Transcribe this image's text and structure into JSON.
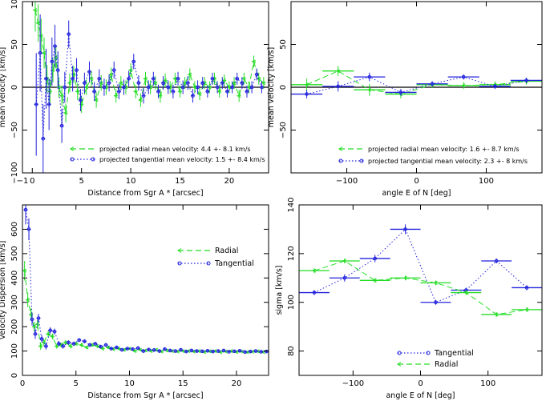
{
  "colors": {
    "radial": "#22dd22",
    "tangential": "#2222dd",
    "axis": "#000000"
  },
  "chart_data": [
    {
      "id": "p1",
      "type": "scatter",
      "xlabel": "Distance from Sgr A * [arcsec]",
      "ylabel": "mean velocity [km/s]",
      "xlim": [
        -1,
        24
      ],
      "ylim": [
        -100,
        100
      ],
      "xticks": [
        -1,
        0,
        5,
        10,
        15,
        20
      ],
      "xticklabels": [
        "−1",
        "0",
        "5",
        "10",
        "15",
        "20"
      ],
      "yticks": [
        -100,
        -50,
        0,
        50,
        100
      ],
      "yticklabels": [
        "−100",
        "−50",
        "0",
        "50",
        "100"
      ],
      "zero_line": true,
      "legend": [
        {
          "label": "projected radial mean velocity: 4.4 +- 8.1 km/s",
          "series": "radial"
        },
        {
          "label": "projected tangential mean velocity: 1.5 +- 8.4 km/s",
          "series": "tangential"
        }
      ],
      "series": [
        {
          "key": "radial",
          "name": "projected radial mean velocity",
          "style": "dashed",
          "x": [
            0.3,
            0.6,
            0.9,
            1.2,
            1.5,
            1.8,
            2.1,
            2.4,
            2.7,
            3.0,
            3.4,
            3.8,
            4.2,
            4.6,
            5.0,
            5.5,
            6.0,
            6.5,
            7.0,
            7.5,
            8.0,
            8.5,
            9.0,
            9.5,
            10.0,
            10.5,
            11.0,
            11.5,
            12.0,
            12.5,
            13.0,
            13.5,
            14.0,
            14.5,
            15.0,
            15.5,
            16.0,
            16.5,
            17.0,
            17.5,
            18.0,
            18.5,
            19.0,
            19.5,
            20.0,
            20.5,
            21.0,
            21.5,
            22.0,
            22.5,
            23.0,
            23.5
          ],
          "y": [
            90,
            75,
            60,
            40,
            10,
            -5,
            20,
            35,
            0,
            -10,
            -30,
            5,
            15,
            -5,
            -20,
            0,
            10,
            -15,
            5,
            0,
            15,
            -10,
            5,
            0,
            20,
            -5,
            -15,
            10,
            0,
            5,
            -10,
            8,
            0,
            10,
            -5,
            5,
            15,
            0,
            -8,
            5,
            0,
            10,
            -5,
            8,
            0,
            5,
            -10,
            10,
            0,
            30,
            10,
            5
          ],
          "err": [
            25,
            22,
            20,
            18,
            16,
            15,
            14,
            13,
            12,
            12,
            11,
            11,
            10,
            10,
            10,
            9,
            9,
            9,
            9,
            9,
            8,
            8,
            8,
            8,
            8,
            8,
            8,
            8,
            8,
            8,
            8,
            8,
            7,
            7,
            7,
            7,
            7,
            7,
            7,
            7,
            7,
            7,
            7,
            7,
            7,
            7,
            7,
            7,
            7,
            7,
            7,
            7
          ]
        },
        {
          "key": "tangential",
          "name": "projected tangential mean velocity",
          "style": "dotted",
          "x": [
            0.4,
            0.8,
            1.1,
            1.4,
            1.7,
            2.0,
            2.3,
            2.6,
            3.0,
            3.3,
            3.7,
            4.1,
            4.5,
            4.9,
            5.3,
            5.8,
            6.3,
            6.8,
            7.3,
            7.8,
            8.3,
            8.8,
            9.3,
            9.8,
            10.3,
            10.8,
            11.3,
            11.8,
            12.3,
            12.8,
            13.3,
            13.8,
            14.3,
            14.8,
            15.3,
            15.8,
            16.3,
            16.8,
            17.3,
            17.8,
            18.3,
            18.8,
            19.3,
            19.8,
            20.3,
            20.8,
            21.3,
            21.8,
            22.3,
            22.8,
            23.3
          ],
          "y": [
            -20,
            40,
            -60,
            10,
            -20,
            30,
            48,
            20,
            -45,
            0,
            62,
            10,
            20,
            -15,
            5,
            18,
            -5,
            10,
            0,
            5,
            20,
            -5,
            0,
            10,
            30,
            5,
            -10,
            0,
            10,
            -5,
            5,
            0,
            -5,
            10,
            0,
            5,
            -10,
            0,
            5,
            -5,
            10,
            0,
            5,
            -5,
            0,
            10,
            5,
            -5,
            0,
            15,
            0
          ],
          "err": [
            60,
            45,
            40,
            35,
            30,
            28,
            25,
            22,
            20,
            18,
            16,
            15,
            14,
            13,
            12,
            12,
            11,
            11,
            10,
            10,
            10,
            9,
            9,
            9,
            9,
            9,
            9,
            8,
            8,
            8,
            8,
            8,
            8,
            8,
            8,
            8,
            8,
            8,
            7,
            7,
            7,
            7,
            7,
            7,
            7,
            7,
            7,
            7,
            7,
            7,
            7
          ]
        }
      ]
    },
    {
      "id": "p2",
      "type": "scatter",
      "xlabel": "angle E of N [deg]",
      "ylabel": "mean velocity [km/s]",
      "xlim": [
        -180,
        180
      ],
      "ylim": [
        -100,
        100
      ],
      "xticks": [
        -100,
        0,
        100
      ],
      "xticklabels": [
        "−100",
        "0",
        "100"
      ],
      "yticks": [
        -50,
        0,
        50
      ],
      "yticklabels": [
        "−50",
        "0",
        "50"
      ],
      "zero_line": true,
      "legend": [
        {
          "label": "projected radial mean velocity: 1.6 +- 8.7 km/s",
          "series": "radial"
        },
        {
          "label": "projected tangential mean velocity: 2.3 +- 8 km/s",
          "series": "tangential"
        }
      ],
      "series": [
        {
          "key": "radial",
          "name": "projected radial mean velocity",
          "style": "dashed",
          "x": [
            -157.5,
            -112.5,
            -67.5,
            -22.5,
            22.5,
            67.5,
            112.5,
            157.5
          ],
          "y": [
            3,
            19,
            -3,
            -8,
            3,
            2,
            3,
            7
          ],
          "xerr": 22.5,
          "err": [
            7,
            6,
            7,
            5,
            4,
            4,
            4,
            4
          ]
        },
        {
          "key": "tangential",
          "name": "projected tangential mean velocity",
          "style": "dotted",
          "x": [
            -157.5,
            -112.5,
            -67.5,
            -22.5,
            22.5,
            67.5,
            112.5,
            157.5
          ],
          "y": [
            -8,
            1,
            12,
            -6,
            4,
            12,
            1,
            8
          ],
          "xerr": 22.5,
          "err": [
            5,
            6,
            5,
            4,
            3,
            3,
            3,
            3
          ]
        }
      ]
    },
    {
      "id": "p3",
      "type": "scatter",
      "xlabel": "Distance from Sgr A * [arcsec]",
      "ylabel": "Velocity Dispersion [km/s]",
      "xlim": [
        0,
        23
      ],
      "ylim": [
        0,
        700
      ],
      "xticks": [
        0,
        5,
        10,
        15,
        20
      ],
      "xticklabels": [
        "0",
        "5",
        "10",
        "15",
        "20"
      ],
      "yticks": [
        0,
        100,
        200,
        300,
        400,
        500,
        600
      ],
      "yticklabels": [
        "0",
        "100",
        "200",
        "300",
        "400",
        "500",
        "600"
      ],
      "legend": [
        {
          "label": "Radial",
          "series": "radial"
        },
        {
          "label": "Tangential",
          "series": "tangential"
        }
      ],
      "series": [
        {
          "key": "radial",
          "name": "Radial",
          "style": "dashed",
          "x": [
            0.2,
            0.5,
            0.8,
            1.1,
            1.4,
            1.7,
            2.0,
            2.4,
            2.8,
            3.2,
            3.6,
            4.0,
            4.5,
            5.0,
            5.5,
            6.0,
            6.5,
            7.0,
            7.5,
            8.0,
            8.5,
            9.0,
            9.5,
            10.0,
            10.5,
            11.0,
            11.5,
            12.0,
            12.5,
            13.0,
            13.5,
            14.0,
            14.5,
            15.0,
            15.5,
            16.0,
            16.5,
            17.0,
            17.5,
            18.0,
            18.5,
            19.0,
            19.5,
            20.0,
            20.5,
            21.0,
            21.5,
            22.0,
            22.5
          ],
          "y": [
            430,
            310,
            250,
            200,
            210,
            120,
            135,
            170,
            160,
            120,
            125,
            135,
            120,
            130,
            125,
            115,
            125,
            120,
            110,
            115,
            108,
            110,
            105,
            110,
            100,
            105,
            102,
            100,
            105,
            98,
            102,
            100,
            98,
            100,
            100,
            98,
            100,
            96,
            99,
            100,
            95,
            98,
            100,
            96,
            98,
            95,
            97,
            99,
            96
          ],
          "err": [
            40,
            30,
            25,
            20,
            18,
            15,
            14,
            13,
            12,
            10,
            10,
            9,
            9,
            8,
            8,
            7,
            7,
            7,
            6,
            6,
            6,
            6,
            6,
            5,
            5,
            5,
            5,
            5,
            5,
            5,
            5,
            5,
            5,
            5,
            5,
            5,
            5,
            5,
            5,
            5,
            5,
            5,
            5,
            5,
            5,
            5,
            5,
            5,
            5
          ]
        },
        {
          "key": "tangential",
          "name": "Tangential",
          "style": "dotted",
          "x": [
            0.3,
            0.6,
            0.9,
            1.2,
            1.5,
            1.8,
            2.2,
            2.6,
            3.0,
            3.4,
            3.8,
            4.3,
            4.8,
            5.3,
            5.8,
            6.3,
            6.8,
            7.3,
            7.8,
            8.3,
            8.8,
            9.3,
            9.8,
            10.3,
            10.8,
            11.3,
            11.8,
            12.3,
            12.8,
            13.3,
            13.8,
            14.3,
            14.8,
            15.3,
            15.8,
            16.3,
            16.8,
            17.3,
            17.8,
            18.3,
            18.8,
            19.3,
            19.8,
            20.3,
            20.8,
            21.3,
            21.8,
            22.3,
            22.8
          ],
          "y": [
            680,
            600,
            230,
            170,
            235,
            150,
            120,
            185,
            180,
            130,
            120,
            135,
            130,
            145,
            140,
            125,
            130,
            118,
            125,
            110,
            115,
            105,
            110,
            108,
            112,
            100,
            106,
            104,
            100,
            108,
            102,
            100,
            105,
            98,
            102,
            100,
            99,
            101,
            98,
            100,
            102,
            97,
            99,
            101,
            96,
            98,
            100,
            97,
            98
          ],
          "err": [
            60,
            45,
            25,
            20,
            18,
            15,
            14,
            13,
            12,
            10,
            10,
            9,
            9,
            8,
            8,
            7,
            7,
            7,
            6,
            6,
            6,
            6,
            6,
            5,
            5,
            5,
            5,
            5,
            5,
            5,
            5,
            5,
            5,
            5,
            5,
            5,
            5,
            5,
            5,
            5,
            5,
            5,
            5,
            5,
            5,
            5,
            5,
            5,
            5
          ]
        }
      ]
    },
    {
      "id": "p4",
      "type": "line",
      "xlabel": "angle E of N [deg]",
      "ylabel": "sigma [km/s]",
      "xlim": [
        -180,
        180
      ],
      "ylim": [
        70,
        140
      ],
      "xticks": [
        -100,
        0,
        100
      ],
      "xticklabels": [
        "−100",
        "0",
        "100"
      ],
      "yticks": [
        80,
        100,
        120,
        140
      ],
      "yticklabels": [
        "80",
        "100",
        "120",
        "140"
      ],
      "legend": [
        {
          "label": "Tangential",
          "series": "tangential"
        },
        {
          "label": "Radial",
          "series": "radial"
        }
      ],
      "series": [
        {
          "key": "tangential",
          "name": "Tangential",
          "style": "dotted",
          "x": [
            -157.5,
            -112.5,
            -67.5,
            -22.5,
            22.5,
            67.5,
            112.5,
            157.5
          ],
          "y": [
            104,
            110,
            118,
            130,
            100,
            105,
            117,
            106
          ],
          "xerr": 22.5,
          "err": [
            1,
            1.5,
            1.5,
            2,
            1,
            1,
            1,
            1
          ]
        },
        {
          "key": "radial",
          "name": "Radial",
          "style": "dashed",
          "x": [
            -157.5,
            -112.5,
            -67.5,
            -22.5,
            22.5,
            67.5,
            112.5,
            157.5
          ],
          "y": [
            113,
            117,
            109,
            110,
            108,
            104,
            95,
            97
          ],
          "xerr": 22.5,
          "err": [
            1,
            1,
            1,
            1,
            1,
            1,
            1,
            1
          ]
        }
      ]
    }
  ]
}
